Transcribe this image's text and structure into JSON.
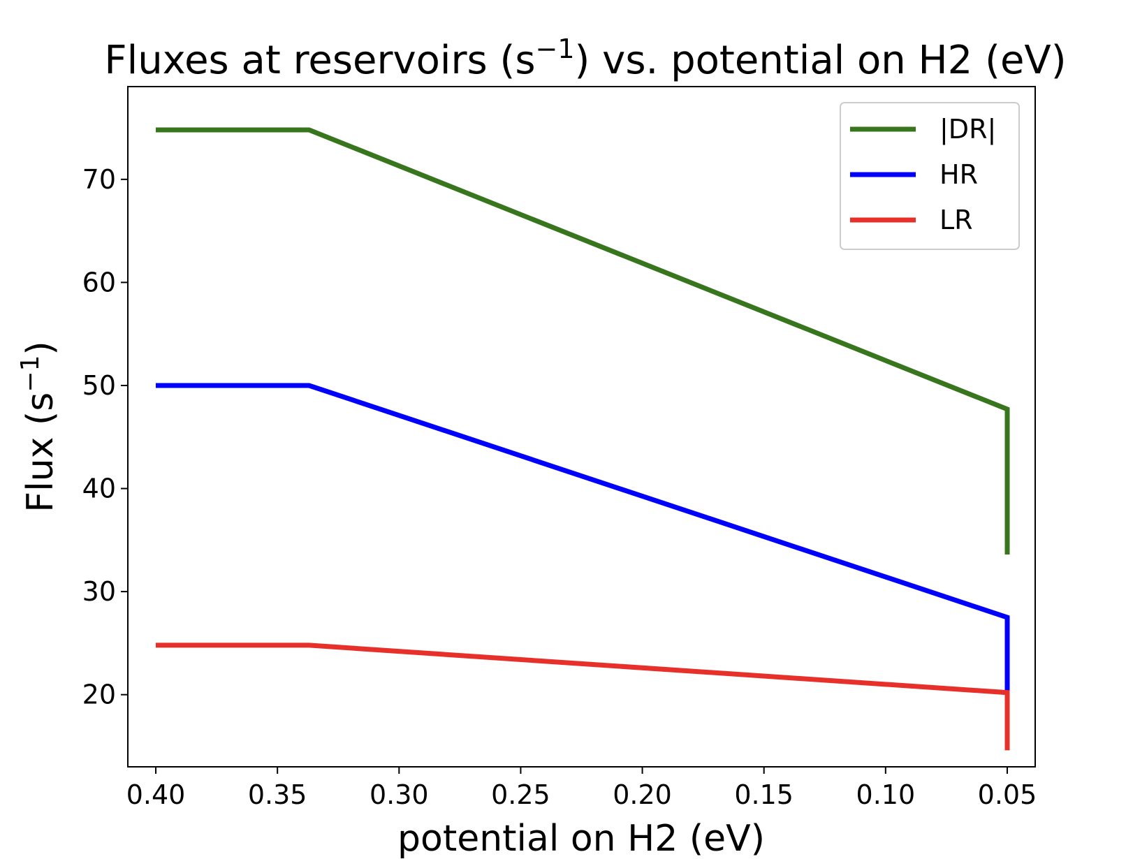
{
  "chart_data": {
    "type": "line",
    "title": {
      "pre": "Fluxes at reservoirs (s",
      "sup": "−1",
      "post": ") vs. potential on H2 (eV)"
    },
    "xlabel": "potential on H2 (eV)",
    "ylabel": {
      "pre": "Flux (s",
      "sup": "−1",
      "post": ")"
    },
    "xlim": [
      0.4115,
      0.0385
    ],
    "ylim": [
      13.0,
      79.0
    ],
    "x_reversed": true,
    "xticks": [
      0.4,
      0.35,
      0.3,
      0.25,
      0.2,
      0.15,
      0.1,
      0.05
    ],
    "xtick_labels": [
      "0.40",
      "0.35",
      "0.30",
      "0.25",
      "0.20",
      "0.15",
      "0.10",
      "0.05"
    ],
    "yticks": [
      20,
      30,
      40,
      50,
      60,
      70
    ],
    "ytick_labels": [
      "20",
      "30",
      "40",
      "50",
      "60",
      "70"
    ],
    "grid": false,
    "legend_position": "top-right",
    "series": [
      {
        "name": "|DR|",
        "color": "#38761d",
        "points": [
          [
            0.4,
            74.8
          ],
          [
            0.337,
            74.8
          ],
          [
            0.05,
            47.7
          ],
          [
            0.05,
            33.6
          ]
        ]
      },
      {
        "name": "HR",
        "color": "#0000ff",
        "points": [
          [
            0.4,
            50.0
          ],
          [
            0.337,
            50.0
          ],
          [
            0.05,
            27.5
          ],
          [
            0.05,
            19.3
          ]
        ]
      },
      {
        "name": "LR",
        "color": "#e8302a",
        "points": [
          [
            0.4,
            24.8
          ],
          [
            0.337,
            24.8
          ],
          [
            0.05,
            20.2
          ],
          [
            0.05,
            14.6
          ]
        ]
      }
    ]
  }
}
